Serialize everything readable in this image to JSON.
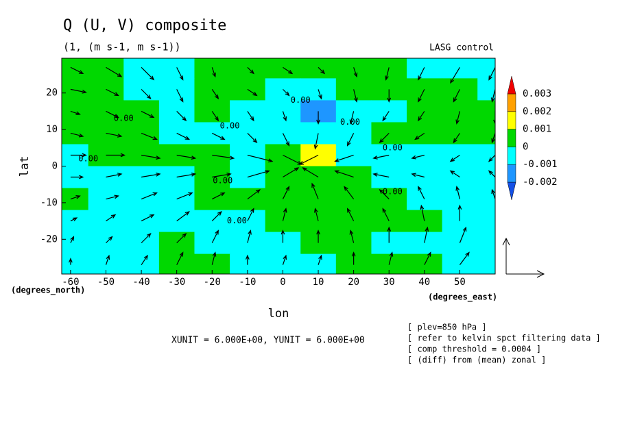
{
  "chart_data": {
    "type": "contour_vector",
    "title": "Q (U, V) composite",
    "subtitle": "(1, (m s-1, m s-1))",
    "corner_label": "LASG  control",
    "xlabel": "lon",
    "ylabel": "lat",
    "xunit_label": "(degrees_east)",
    "yunit_label": "(degrees_north)",
    "vector_units": "XUNIT = 6.000E+00, YUNIT = 6.000E+00",
    "notes": [
      "[ plev=850 hPa ]",
      "[ refer to kelvin spct filtering data ]",
      "[ comp threshold = 0.0004 ]",
      "[ (diff) from (mean) zonal ]"
    ],
    "contour_labels": [
      "0.00",
      "0.00",
      "0.00",
      "0.00",
      "0.00",
      "0.00",
      "0.00",
      "0.00",
      "0.00"
    ],
    "xlim": [
      -62.5,
      60
    ],
    "ylim": [
      -29.5,
      29.5
    ],
    "xticks": [
      -60,
      -50,
      -40,
      -30,
      -20,
      -10,
      0,
      10,
      20,
      30,
      40,
      50
    ],
    "yticks": [
      -20,
      -10,
      0,
      10,
      20
    ],
    "lon": [
      -60,
      -50,
      -40,
      -30,
      -20,
      -10,
      0,
      10,
      20,
      30,
      40,
      50,
      60
    ],
    "lat": [
      27,
      21,
      15,
      9,
      3,
      -3,
      -9,
      -15,
      -21,
      -27
    ],
    "levels": [
      -0.002,
      -0.001,
      0,
      0.001,
      0.002,
      0.003
    ],
    "colors": [
      "#1450e6",
      "#1e96ff",
      "#00ffff",
      "#00d800",
      "#ffff00",
      "#ffa000",
      "#f00000"
    ],
    "z": [
      [
        0.0005,
        0.0005,
        -0.0005,
        -0.0005,
        0.0005,
        0.0005,
        0.0005,
        0.0005,
        0.0005,
        0.0005,
        -0.0005,
        -0.0005,
        -0.0005
      ],
      [
        0.0005,
        0.0005,
        -0.0005,
        -0.0005,
        0.0005,
        0.0005,
        -0.0005,
        -0.0005,
        0.0005,
        0.0005,
        0.0005,
        0.0005,
        -0.0005
      ],
      [
        0.0005,
        0.0005,
        0.0005,
        -0.0005,
        0.0005,
        -0.0005,
        -0.0005,
        -0.0012,
        -0.0005,
        -0.0005,
        0.0005,
        0.0005,
        0.0005
      ],
      [
        0.0005,
        0.0005,
        0.0005,
        -0.0005,
        -0.0005,
        -0.0005,
        -0.0005,
        -0.0005,
        -0.0005,
        0.0005,
        0.0005,
        0.0005,
        0.0005
      ],
      [
        -0.0005,
        0.0005,
        0.0005,
        0.0005,
        0.0005,
        -0.0005,
        0.0005,
        0.0014,
        -0.0005,
        -0.0005,
        -0.0005,
        -0.0005,
        -0.0005
      ],
      [
        -0.0005,
        -0.0005,
        -0.0005,
        -0.0005,
        0.0005,
        -0.0005,
        0.0005,
        0.0005,
        0.0005,
        -0.0005,
        -0.0005,
        -0.0005,
        -0.0005
      ],
      [
        0.0005,
        -0.0005,
        -0.0005,
        -0.0005,
        0.0005,
        0.0005,
        0.0005,
        0.0005,
        0.0005,
        0.0005,
        -0.0005,
        -0.0005,
        -0.0005
      ],
      [
        -0.0005,
        -0.0005,
        -0.0005,
        -0.0005,
        -0.0005,
        -0.0005,
        0.0005,
        0.0005,
        0.0005,
        0.0005,
        0.0005,
        -0.0005,
        -0.0005
      ],
      [
        -0.0005,
        -0.0005,
        -0.0005,
        0.0005,
        -0.0005,
        -0.0005,
        -0.0005,
        0.0005,
        0.0005,
        -0.0005,
        -0.0005,
        -0.0005,
        -0.0005
      ],
      [
        -0.0005,
        -0.0005,
        -0.0005,
        0.0005,
        0.0005,
        -0.0005,
        -0.0005,
        -0.0005,
        0.0005,
        0.0005,
        0.0005,
        -0.0005,
        -0.0005
      ]
    ],
    "u": [
      [
        2,
        2.5,
        2,
        1,
        0.5,
        1,
        1.5,
        1,
        0.5,
        -0.5,
        -1,
        -1.5,
        -1
      ],
      [
        2.5,
        2,
        1.5,
        1,
        1,
        1.5,
        1,
        0.5,
        0.5,
        0,
        -1,
        -1,
        -0.5
      ],
      [
        1.5,
        2,
        2,
        1.5,
        1,
        1,
        0.5,
        0,
        -0.5,
        -1,
        -1,
        -0.5,
        0
      ],
      [
        2,
        2.5,
        2.5,
        2,
        2,
        1.5,
        1,
        -0.5,
        -1,
        -1.5,
        -1.5,
        -1,
        -0.5
      ],
      [
        2.5,
        3,
        3,
        3,
        3.5,
        4,
        3,
        -3,
        -3,
        -2.5,
        -2,
        -1.5,
        -1
      ],
      [
        2,
        2.5,
        3,
        3,
        3,
        3.5,
        2.5,
        -2.5,
        -3,
        -2.5,
        -2,
        -1.5,
        -1
      ],
      [
        1.5,
        2,
        2.5,
        2.5,
        2,
        2,
        1,
        -1,
        -1.5,
        -1.5,
        -1,
        -0.5,
        -0.5
      ],
      [
        1,
        1.5,
        2,
        2,
        1.5,
        1,
        0.5,
        -0.5,
        -1,
        -1,
        -0.5,
        0,
        0.5
      ],
      [
        0.5,
        1,
        1.5,
        1.5,
        1,
        0.5,
        0,
        0,
        -0.5,
        0,
        0.5,
        1,
        1.5
      ],
      [
        0,
        0.5,
        1,
        1,
        0.5,
        0,
        0.5,
        0.5,
        0,
        0.5,
        1,
        1.5,
        2
      ]
    ],
    "v": [
      [
        -1,
        -1.5,
        -2,
        -2,
        -1.5,
        -1,
        -1,
        -1,
        -1.5,
        -2,
        -2,
        -2.5,
        -2
      ],
      [
        -0.5,
        -1,
        -1.5,
        -2,
        -1.5,
        -1,
        -1,
        -1.5,
        -2,
        -2,
        -2,
        -2,
        -2
      ],
      [
        -0.5,
        -1,
        -1,
        -1.5,
        -1.5,
        -1.5,
        -1.5,
        -2,
        -2,
        -1.5,
        -1.5,
        -2,
        -2
      ],
      [
        -0.5,
        -0.5,
        -1,
        -1,
        -1,
        -1.5,
        -2,
        -2.5,
        -2,
        -1.5,
        -1,
        -1.5,
        -1.5
      ],
      [
        0,
        0,
        -0.5,
        -0.5,
        -0.5,
        -1,
        -1.5,
        -1.5,
        -1,
        -0.5,
        -0.5,
        -1,
        -1
      ],
      [
        0,
        0.5,
        0.5,
        0.5,
        0.5,
        1,
        1.5,
        1.5,
        1,
        0.5,
        0.5,
        1,
        1
      ],
      [
        0.5,
        0.5,
        1,
        1,
        1,
        1.5,
        2,
        2.5,
        2,
        1.5,
        2,
        2,
        1.5
      ],
      [
        0.5,
        1,
        1,
        1.5,
        1.5,
        2,
        2,
        2,
        2,
        2,
        2.5,
        2.5,
        2
      ],
      [
        1,
        1,
        1.5,
        1.5,
        2,
        2,
        2,
        2,
        2,
        2.5,
        2.5,
        2.5,
        2
      ],
      [
        1,
        1.5,
        1.5,
        2,
        2,
        1.5,
        1.5,
        1.5,
        2,
        2,
        2,
        2,
        1.5
      ]
    ]
  }
}
